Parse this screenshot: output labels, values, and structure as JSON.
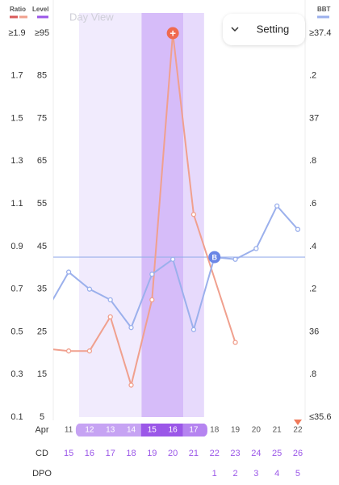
{
  "chart_data": {
    "type": "line",
    "legend": {
      "ratio": "Ratio",
      "level": "Level",
      "bbt": "BBT"
    },
    "view_label": "Day View",
    "setting_label": "Setting",
    "month": "Apr",
    "categories": [
      "11",
      "12",
      "13",
      "14",
      "15",
      "16",
      "17",
      "18",
      "19",
      "20",
      "21",
      "22"
    ],
    "xlim": [
      10.26,
      22.35
    ],
    "ylim": [
      0.1,
      1.9
    ],
    "yticks": [
      {
        "value": 1.9,
        "label": "≥1.9"
      },
      1.7,
      1.5,
      1.3,
      1.1,
      0.9,
      0.7,
      0.5,
      0.3,
      0.1
    ],
    "level_lim": [
      5,
      95
    ],
    "level_ticks": [
      {
        "value": 95,
        "label": "≥95"
      },
      85,
      75,
      65,
      55,
      45,
      35,
      25,
      15,
      5
    ],
    "y2lim": [
      35.6,
      37.4
    ],
    "y2ticks": [
      {
        "value": 37.4,
        "label": "≥37.4"
      },
      {
        "value": 37.2,
        "label": ".2"
      },
      37,
      {
        "value": 36.8,
        "label": ".8"
      },
      {
        "value": 36.6,
        "label": ".6"
      },
      {
        "value": 36.4,
        "label": ".4"
      },
      {
        "value": 36.2,
        "label": ".2"
      },
      36,
      {
        "value": 35.8,
        "label": ".8"
      },
      {
        "value": 35.6,
        "label": "≤35.6"
      }
    ],
    "series": [
      {
        "name": "Ratio",
        "color": "#f0a08e",
        "x": [
          10,
          11,
          12,
          13,
          14,
          15,
          16,
          17,
          19
        ],
        "values": [
          0.42,
          0.41,
          0.41,
          0.57,
          0.25,
          0.65,
          1.9,
          1.05,
          0.45
        ]
      },
      {
        "name": "BBT",
        "color": "#9bb0ec",
        "axis": "y2",
        "x": [
          10,
          11,
          12,
          13,
          14,
          15,
          16,
          17,
          18,
          19,
          20,
          21,
          22
        ],
        "values": [
          36.11,
          36.28,
          36.2,
          36.15,
          36.02,
          36.27,
          36.34,
          36.01,
          36.35,
          36.34,
          36.39,
          36.59,
          36.48
        ]
      }
    ],
    "peak_marker": "+",
    "coverline_marker": "B",
    "coverline": 36.35,
    "bands": [
      {
        "from": 11.5,
        "to": 14.5,
        "color": "#f1ebfd"
      },
      {
        "from": 14.5,
        "to": 16.5,
        "color": "#d6bcf9"
      },
      {
        "from": 16.5,
        "to": 17.5,
        "color": "#e7dafc"
      }
    ],
    "pill_colors": [
      null,
      "#c6a3f3",
      "#c6a3f3",
      "#c6a3f3",
      "#9b57e8",
      "#9b57e8",
      "#b584f0",
      null,
      null,
      null,
      null,
      null
    ],
    "cd_label": "CD",
    "cd": [
      15,
      16,
      17,
      18,
      19,
      20,
      21,
      22,
      23,
      24,
      25,
      26
    ],
    "dpo_label": "DPO",
    "dpo": [
      null,
      null,
      null,
      null,
      null,
      null,
      null,
      1,
      2,
      3,
      4,
      5
    ]
  }
}
